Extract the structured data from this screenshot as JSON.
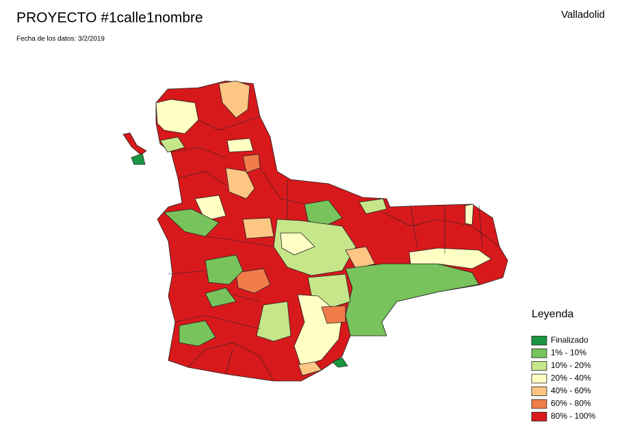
{
  "header": {
    "title": "PROYECTO #1calle1nombre",
    "subtitle": "Fecha de los datos: 3/2/2019",
    "region": "Valladolid"
  },
  "legend": {
    "title": "Leyenda",
    "items": [
      {
        "label": "Finalizado",
        "color": "#1a9641"
      },
      {
        "label": "1% - 10%",
        "color": "#78c35c"
      },
      {
        "label": "10% - 20%",
        "color": "#c6e68a"
      },
      {
        "label": "20% - 40%",
        "color": "#ffffc4"
      },
      {
        "label": "40% - 60%",
        "color": "#fdc683"
      },
      {
        "label": "60% - 80%",
        "color": "#f07c4a"
      },
      {
        "label": "80% - 100%",
        "color": "#d7191c"
      }
    ]
  }
}
